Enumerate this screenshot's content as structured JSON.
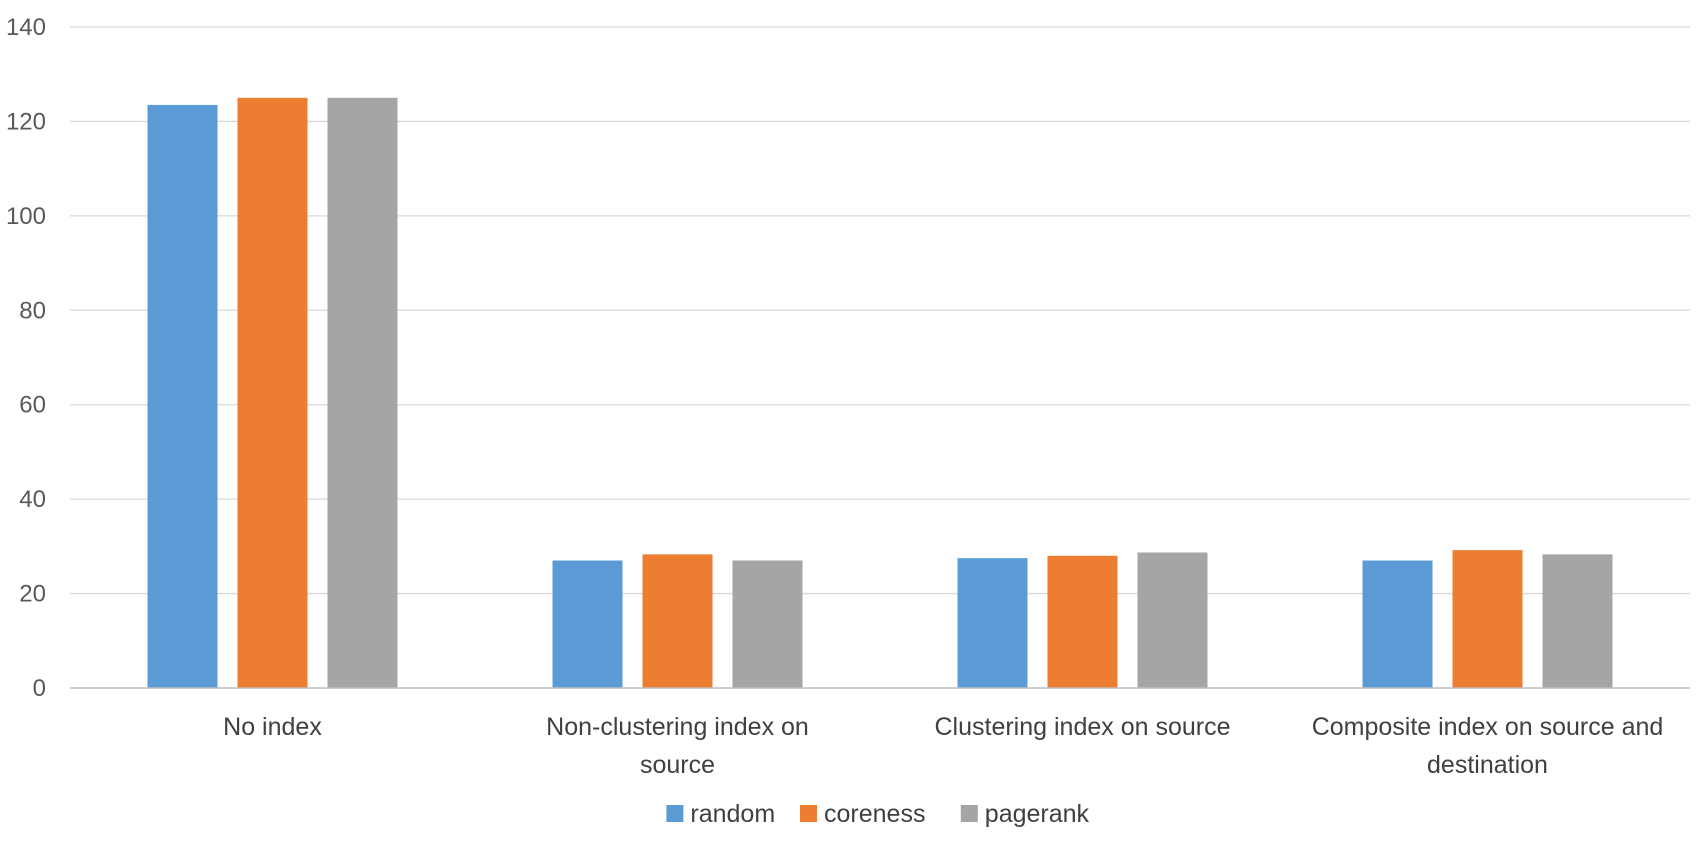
{
  "chart_data": {
    "type": "bar",
    "title": "",
    "xlabel": "",
    "ylabel": "",
    "ylim": [
      0,
      140
    ],
    "ytick_step": 20,
    "grid": true,
    "legend_position": "bottom",
    "categories": [
      "No index",
      "Non-clustering index on source",
      "Clustering index on source",
      "Composite index on source and destination"
    ],
    "series": [
      {
        "name": "random",
        "color": "#5B9BD5",
        "values": [
          123.5,
          27,
          27.5,
          27
        ]
      },
      {
        "name": "coreness",
        "color": "#ED7D31",
        "values": [
          125,
          28.3,
          28,
          29.2
        ]
      },
      {
        "name": "pagerank",
        "color": "#A5A5A5",
        "values": [
          125,
          27,
          28.7,
          28.3
        ]
      }
    ]
  }
}
